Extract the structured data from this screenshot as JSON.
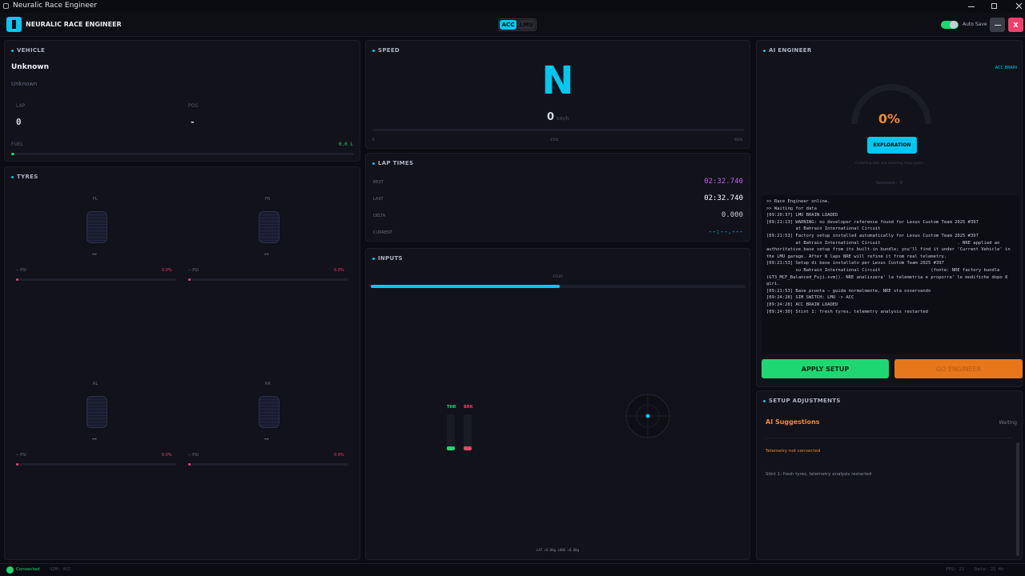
{
  "window": {
    "title": "Neuralic Race Engineer"
  },
  "header": {
    "app_name": "NEURALIC RACE ENGINEER",
    "sim_options": [
      "ACC",
      "LMU"
    ],
    "auto_save": "Auto Save",
    "close": "X"
  },
  "vehicle": {
    "title": "VEHICLE",
    "name": "Unknown",
    "subtitle": "Unknown",
    "lap_label": "LAP",
    "lap": "0",
    "pos_label": "POS",
    "pos": "-",
    "fuel_label": "FUEL",
    "fuel": "0.0 L"
  },
  "tyres": {
    "title": "TYRES",
    "items": [
      {
        "label": "FL",
        "temp": "--",
        "psi": "-- PSI",
        "wear": "0.0%"
      },
      {
        "label": "FR",
        "temp": "--",
        "psi": "-- PSI",
        "wear": "0.0%"
      },
      {
        "label": "RL",
        "temp": "--",
        "psi": "-- PSI",
        "wear": "0.0%"
      },
      {
        "label": "RR",
        "temp": "--",
        "psi": "-- PSI",
        "wear": "0.0%"
      }
    ]
  },
  "speed": {
    "title": "SPEED",
    "gear": "N",
    "value": "0",
    "unit": "km/h",
    "rpm_ticks": [
      "0",
      "4500",
      "9000"
    ]
  },
  "lap_times": {
    "title": "LAP TIMES",
    "rows": [
      {
        "label": "BEST",
        "value": "02:32.740"
      },
      {
        "label": "LAST",
        "value": "02:32.740"
      },
      {
        "label": "DELTA",
        "value": "0.000"
      },
      {
        "label": "CURRENT",
        "value": "--:--.---"
      }
    ]
  },
  "inputs": {
    "title": "INPUTS",
    "steer": "STEER",
    "throttle": "THR",
    "brake": "BRK",
    "g_force": "LAT +0.00g  LONG +0.00g"
  },
  "ai_engineer": {
    "title": "AI ENGINEER",
    "brain": "ACC BRAIN",
    "progress": "0%",
    "mode": "EXPLORATION",
    "mode_note": "Collecting data and exploring setup space",
    "sessions": "Sessions: 0",
    "log": [
      ">> Race Engineer online.",
      ">> Waiting for data",
      "[09:20:37] LMU BRAIN LOADED",
      "[09:21:13] WARNING: no developer reference found for Lexus Custom Team 2025 #397\n           at Bahrain International Circuit",
      "[09:21:53] Factory setup installed automatically for Lexus Custom Team 2025 #397\n           at Bahrain International Circuit                             . NRE applied an authoritative base setup from its built-in bundle; you'll find it under 'Current Vehicle' in the LMU garage. After 8 laps NRE will refine it from real telemetry.",
      "[09:21:53] Setup di base installato per Lexus Custom Team 2025 #397\n           su Bahrain International Circuit                   (fonte: NRE factory bundle (GT3_MCF_Balanced_Fuji.svm)). NRE analizzera' la telemetria e proporra' le modifiche dopo 8 giri.",
      "[09:21:53] Base pronta — guida normalmente, NRE sta osservando",
      "[09:24:28] SIM SWITCH: LMU -> ACC",
      "[09:24:28] ACC BRAIN LOADED",
      "[09:24:30] Stint 1: fresh tyres, telemetry analysis restarted"
    ],
    "apply": "APPLY SETUP",
    "go": "GO ENGINEER"
  },
  "setup": {
    "title": "SETUP ADJUSTMENTS",
    "suggestions": "AI Suggestions",
    "status": "Waiting",
    "messages": [
      "Telemetry not connected",
      "Stint 1: fresh tyres, telemetry analysis restarted"
    ]
  },
  "status_bar": {
    "connection": "Connected",
    "sim": "SIM: ACC",
    "fps": "FPS: 21",
    "data_rate": "Data: 21 Hz"
  }
}
